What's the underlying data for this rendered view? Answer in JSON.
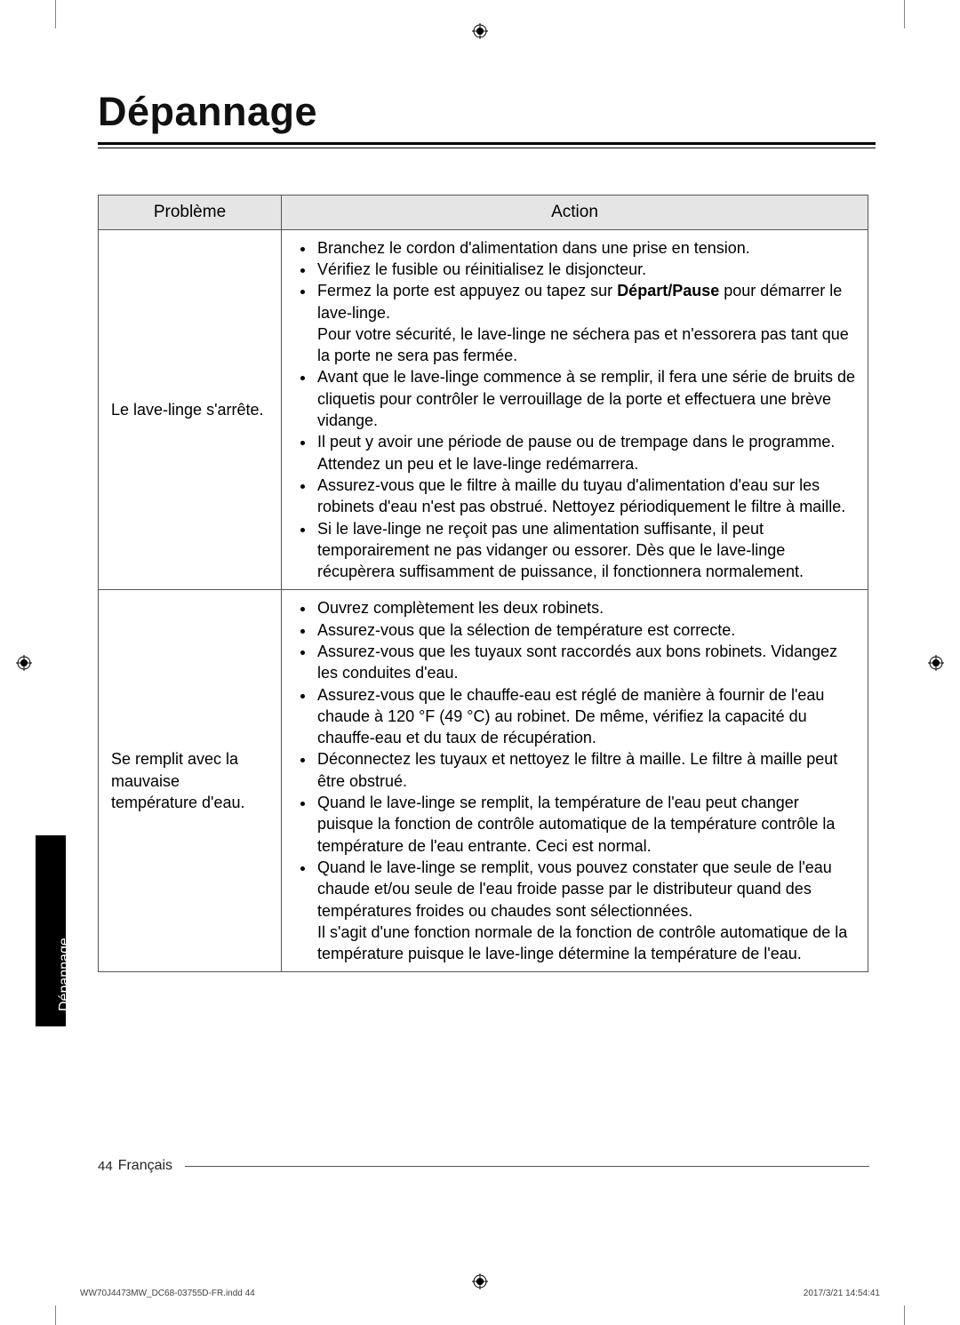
{
  "title": "Dépannage",
  "side_tab": "Dépannage",
  "table": {
    "headers": {
      "problem": "Problème",
      "action": "Action"
    },
    "rows": [
      {
        "problem": "Le lave-linge s'arrête.",
        "actions": [
          "Branchez le cordon d'alimentation dans une prise en tension.",
          "Vérifiez le fusible ou réinitialisez le disjoncteur.",
          "Fermez la porte est appuyez ou tapez sur <b>Départ/Pause</b> pour démarrer le lave-linge.\nPour votre sécurité, le lave-linge ne séchera pas et n'essorera pas tant que la porte ne sera pas fermée.",
          "Avant que le lave-linge commence à se remplir, il fera une série de bruits de cliquetis pour contrôler le verrouillage de la porte et effectuera une brève vidange.",
          "Il peut y avoir une période de pause ou de trempage dans le programme. Attendez un peu et le lave-linge redémarrera.",
          "Assurez-vous que le filtre à maille du tuyau d'alimentation d'eau sur les robinets d'eau n'est pas obstrué. Nettoyez périodiquement le filtre à maille.",
          "Si le lave-linge ne reçoit pas une alimentation suffisante, il peut temporairement ne pas vidanger ou essorer. Dès que le lave-linge récupèrera suffisamment de puissance, il fonctionnera normalement."
        ]
      },
      {
        "problem": "Se remplit avec la mauvaise température d'eau.",
        "actions": [
          "Ouvrez complètement les deux robinets.",
          "Assurez-vous que la sélection de température est correcte.",
          "Assurez-vous que les tuyaux sont raccordés aux bons robinets. Vidangez les conduites d'eau.",
          "Assurez-vous que le chauffe-eau est réglé de manière à fournir de l'eau chaude à 120 °F (49 °C) au robinet. De même, vérifiez la capacité du chauffe-eau et du taux de récupération.",
          "Déconnectez les tuyaux et nettoyez le filtre à maille. Le filtre à maille peut être obstrué.",
          "Quand le lave-linge se remplit, la température de l'eau peut changer puisque la fonction de contrôle automatique de la température contrôle la température de l'eau entrante. Ceci est normal.",
          "Quand le lave-linge se remplit, vous pouvez constater que seule de l'eau chaude et/ou seule de l'eau froide passe par le distributeur quand des températures froides ou chaudes sont sélectionnées.\nIl s'agit d'une fonction normale de la fonction de contrôle automatique de la température puisque le lave-linge détermine la température de l'eau."
        ]
      }
    ]
  },
  "footer": {
    "page_number": "44",
    "language": "Français"
  },
  "print_meta": {
    "left": "WW70J4473MW_DC68-03755D-FR.indd   44",
    "right": "2017/3/21   14:54:41"
  },
  "colors": {
    "header_bg": "#e5e5e5",
    "border": "#555555",
    "tab_bg": "#000000",
    "tab_text": "#ffffff",
    "text": "#000000"
  }
}
